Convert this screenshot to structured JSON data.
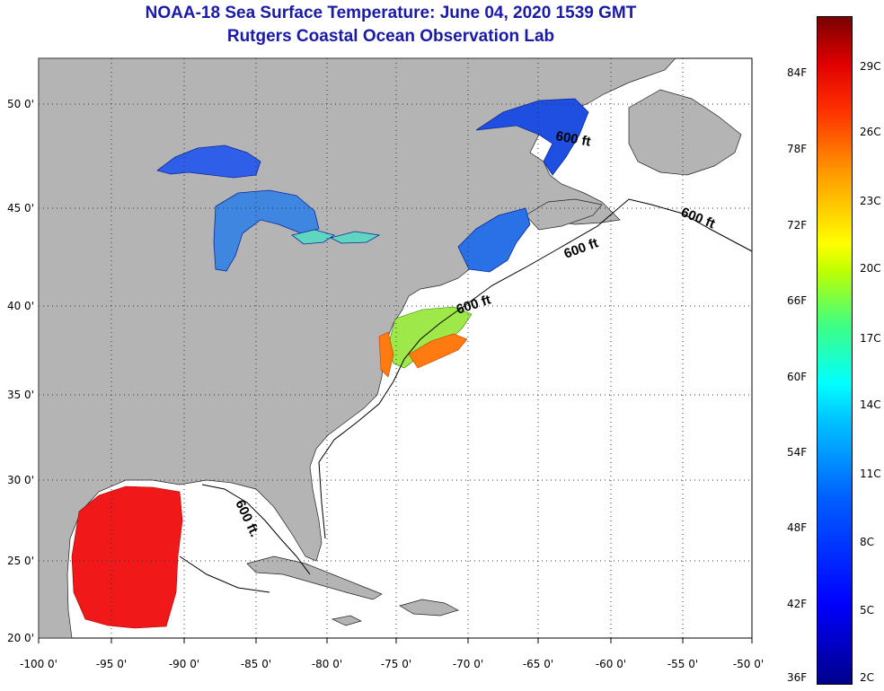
{
  "title": {
    "line1": "NOAA-18 Sea Surface Temperature:  June 04, 2020 1539 GMT",
    "line2": "Rutgers Coastal Ocean Observation Lab"
  },
  "map": {
    "lon_labels": [
      "-100 0'",
      "-95 0'",
      "-90 0'",
      "-85 0'",
      "-80 0'",
      "-75 0'",
      "-70 0'",
      "-65 0'",
      "-60 0'",
      "-55 0'",
      "-50 0'"
    ],
    "lat_labels": [
      "50 0'",
      "45 0'",
      "40 0'",
      "35 0'",
      "30 0'",
      "25 0'",
      "20 0'"
    ],
    "contour_labels": [
      "600 ft",
      "600 ft",
      "600 ft",
      "600 ft",
      "600 ft."
    ],
    "colors": {
      "land": "#b4b4b4",
      "ocean": "#ffffff",
      "grid": "#333333"
    }
  },
  "colorbar": {
    "fahrenheit": [
      "84F",
      "78F",
      "72F",
      "66F",
      "60F",
      "54F",
      "48F",
      "42F",
      "36F"
    ],
    "celsius": [
      "29C",
      "26C",
      "23C",
      "20C",
      "17C",
      "14C",
      "11C",
      "8C",
      "5C",
      "2C"
    ]
  }
}
